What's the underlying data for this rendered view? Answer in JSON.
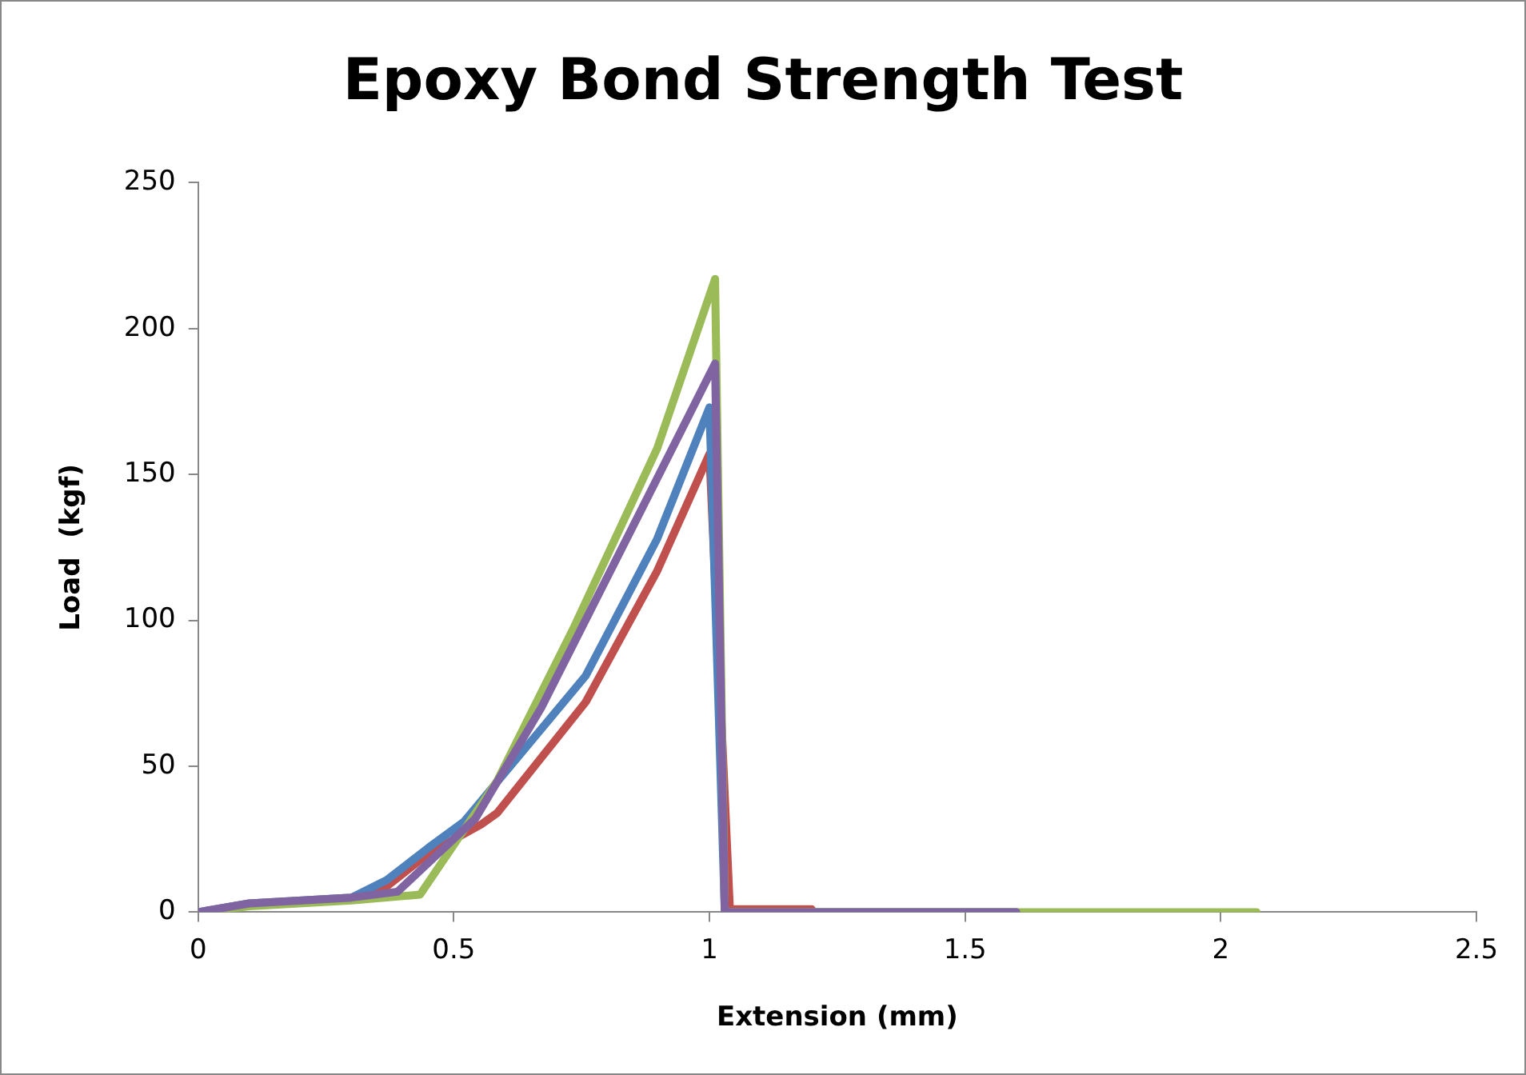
{
  "chart_data": {
    "type": "line",
    "title": "Epoxy Bond Strength Test",
    "xlabel": "Extension (mm)",
    "ylabel": "Load  (kgf)",
    "xlim": [
      0,
      2.5
    ],
    "xticks": [
      0,
      0.5,
      1,
      1.5,
      2,
      2.5
    ],
    "ylim": [
      0,
      250
    ],
    "yticks": [
      0,
      50,
      100,
      150,
      200,
      250
    ],
    "grid": false,
    "legend": false,
    "marker": "none",
    "line_style": "solid",
    "series": [
      {
        "color": "#c0504d",
        "x": [
          0.3,
          0.37,
          0.45,
          0.553,
          0.585,
          0.758,
          0.898,
          1.0,
          1.04,
          1.2
        ],
        "values": [
          5,
          9,
          20,
          30,
          34,
          72,
          117,
          157,
          1,
          1
        ]
      },
      {
        "color": "#4f81bd",
        "x": [
          0,
          0.1,
          0.3,
          0.369,
          0.45,
          0.52,
          0.758,
          0.898,
          1.0,
          1.03,
          1.6
        ],
        "values": [
          0,
          3,
          5,
          11,
          22,
          31,
          81,
          128,
          173,
          0,
          0
        ]
      },
      {
        "color": "#9bbb59",
        "x": [
          0,
          0.1,
          0.3,
          0.434,
          0.585,
          0.736,
          0.898,
          1.011,
          1.03,
          2.07
        ],
        "values": [
          0,
          2,
          4,
          6,
          45,
          98,
          159,
          217,
          0,
          0
        ]
      },
      {
        "color": "#8064a2",
        "x": [
          0,
          0.1,
          0.3,
          0.39,
          0.542,
          0.671,
          0.844,
          1.011,
          1.03,
          1.6
        ],
        "values": [
          0,
          3,
          5,
          7,
          32,
          70,
          130,
          188,
          0,
          0
        ]
      }
    ]
  }
}
